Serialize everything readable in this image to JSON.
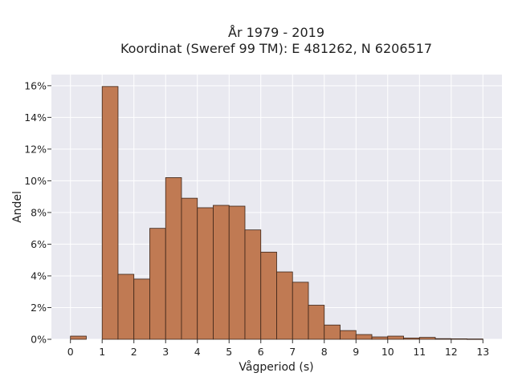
{
  "chart_data": {
    "type": "bar",
    "title_line1": "År 1979 - 2019",
    "title_line2": "Koordinat (Sweref 99 TM): E 481262, N 6206517",
    "xlabel": "Vågperiod (s)",
    "ylabel": "Andel",
    "x_ticks": [
      "0",
      "1",
      "2",
      "3",
      "4",
      "5",
      "6",
      "7",
      "8",
      "9",
      "10",
      "11",
      "12",
      "13"
    ],
    "y_ticks": [
      "0%",
      "2%",
      "4%",
      "6%",
      "8%",
      "10%",
      "12%",
      "14%",
      "16%"
    ],
    "xlim": [
      -0.6,
      13.6
    ],
    "ylim": [
      0,
      16.7
    ],
    "bin_width": 0.5,
    "bins": [
      {
        "start": 0.0,
        "value": 0.2
      },
      {
        "start": 0.5,
        "value": 0.0
      },
      {
        "start": 1.0,
        "value": 15.95
      },
      {
        "start": 1.5,
        "value": 4.1
      },
      {
        "start": 2.0,
        "value": 3.8
      },
      {
        "start": 2.5,
        "value": 7.0
      },
      {
        "start": 3.0,
        "value": 10.2
      },
      {
        "start": 3.5,
        "value": 8.9
      },
      {
        "start": 4.0,
        "value": 8.3
      },
      {
        "start": 4.5,
        "value": 8.45
      },
      {
        "start": 5.0,
        "value": 8.4
      },
      {
        "start": 5.5,
        "value": 6.9
      },
      {
        "start": 6.0,
        "value": 5.5
      },
      {
        "start": 6.5,
        "value": 4.25
      },
      {
        "start": 7.0,
        "value": 3.6
      },
      {
        "start": 7.5,
        "value": 2.15
      },
      {
        "start": 8.0,
        "value": 0.9
      },
      {
        "start": 8.5,
        "value": 0.55
      },
      {
        "start": 9.0,
        "value": 0.3
      },
      {
        "start": 9.5,
        "value": 0.15
      },
      {
        "start": 10.0,
        "value": 0.2
      },
      {
        "start": 10.5,
        "value": 0.08
      },
      {
        "start": 11.0,
        "value": 0.12
      },
      {
        "start": 11.5,
        "value": 0.04
      },
      {
        "start": 12.0,
        "value": 0.03
      },
      {
        "start": 12.5,
        "value": 0.02
      }
    ],
    "grid": true,
    "colors": {
      "bar_fill": "#c07a53",
      "bar_edge": "#3b2418",
      "plot_bg": "#e9e9f0",
      "grid": "#ffffff"
    }
  }
}
